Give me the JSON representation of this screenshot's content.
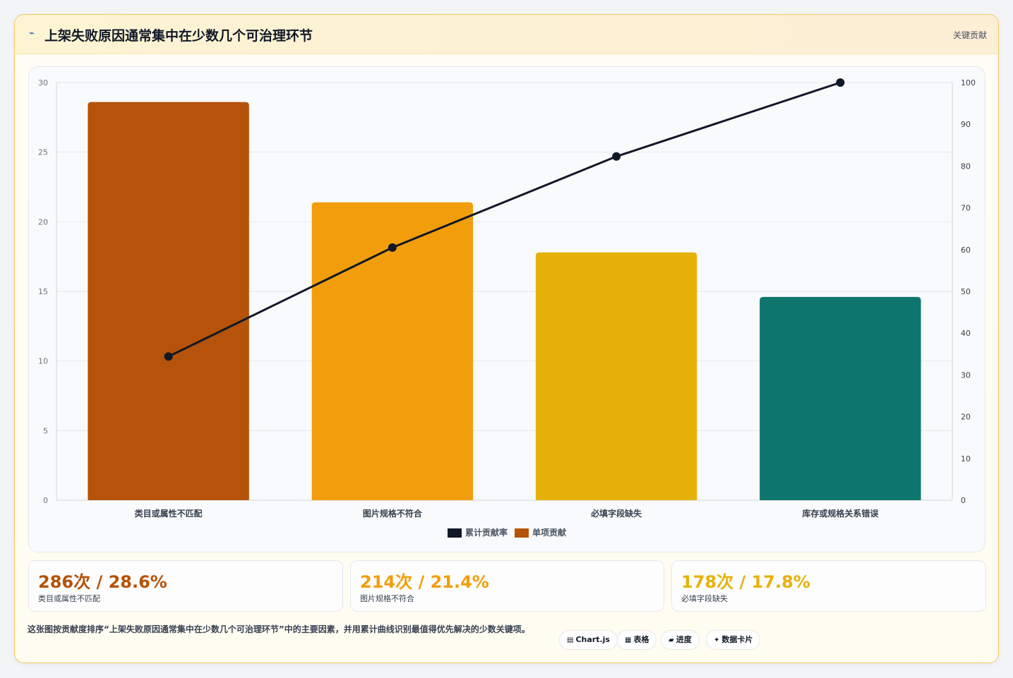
{
  "header": {
    "icon": "lightning-icon",
    "title": "上架失败原因通常集中在少数几个可治理环节",
    "right_label": "关键贡献"
  },
  "colors": {
    "bar_colors": [
      "#b45309",
      "#f29e0c",
      "#e6b209",
      "#0e766e"
    ],
    "line_color": "#111827"
  },
  "chart_data": {
    "type": "bar",
    "categories": [
      "类目或属性不匹配",
      "图片规格不符合",
      "必填字段缺失",
      "库存或规格关系错误"
    ],
    "series": [
      {
        "name": "单项贡献",
        "type": "bar",
        "axis": "left",
        "values": [
          28.6,
          21.4,
          17.8,
          14.6
        ]
      },
      {
        "name": "累计贡献率",
        "type": "line",
        "axis": "right",
        "values": [
          34.4,
          60.5,
          82.3,
          100
        ]
      }
    ],
    "ylim": [
      0,
      30
    ],
    "y_ticks": [
      "0",
      "5",
      "10",
      "15",
      "20",
      "25",
      "30"
    ],
    "y2lim": [
      0,
      100
    ],
    "y2_ticks": [
      "0",
      "10",
      "20",
      "30",
      "40",
      "50",
      "60",
      "70",
      "80",
      "90",
      "100"
    ],
    "legend": [
      {
        "label": "累计贡献率",
        "color": "#111827"
      },
      {
        "label": "单项贡献",
        "color": "#b45309"
      }
    ],
    "legend_position": "bottom",
    "grid": true
  },
  "stats": [
    {
      "value": "286次 / 28.6%",
      "label": "类目或属性不匹配",
      "color": "#b45309"
    },
    {
      "value": "214次 / 21.4%",
      "label": "图片规格不符合",
      "color": "#f29e0c"
    },
    {
      "value": "178次 / 17.8%",
      "label": "必填字段缺失",
      "color": "#e6b209"
    }
  ],
  "footer": {
    "note": "这张图按贡献度排序“上架失败原因通常集中在少数几个可治理环节”中的主要因素，并用累计曲线识别最值得优先解决的少数关键项。",
    "chips": [
      {
        "icon": "chart-icon",
        "glyph": "▤",
        "label": "Chart.js"
      },
      {
        "icon": "table-icon",
        "glyph": "▦",
        "label": "表格"
      },
      {
        "icon": "progress-icon",
        "glyph": "▰",
        "label": "进度"
      },
      {
        "icon": "sparkle-icon",
        "glyph": "✦",
        "label": "数据卡片"
      }
    ]
  }
}
